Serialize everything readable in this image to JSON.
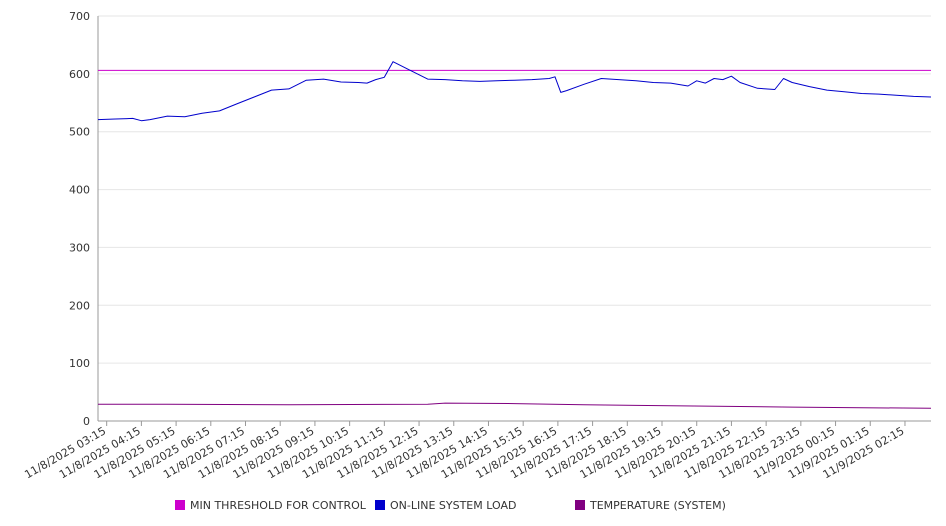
{
  "chart_data": {
    "type": "line",
    "title": "",
    "xlabel": "",
    "ylabel": "",
    "ylim": [
      0,
      700
    ],
    "yticks": [
      0,
      100,
      200,
      300,
      400,
      500,
      600,
      700
    ],
    "grid": true,
    "legend_placement": "bottom",
    "x_tick_labels": [
      "11/8/2025 03:15",
      "11/8/2025 04:15",
      "11/8/2025 05:15",
      "11/8/2025 06:15",
      "11/8/2025 07:15",
      "11/8/2025 08:15",
      "11/8/2025 09:15",
      "11/8/2025 10:15",
      "11/8/2025 11:15",
      "11/8/2025 12:15",
      "11/8/2025 13:15",
      "11/8/2025 14:15",
      "11/8/2025 15:15",
      "11/8/2025 16:15",
      "11/8/2025 17:15",
      "11/8/2025 18:15",
      "11/8/2025 19:15",
      "11/8/2025 20:15",
      "11/8/2025 21:15",
      "11/8/2025 22:15",
      "11/8/2025 23:15",
      "11/9/2025 00:15",
      "11/9/2025 01:15",
      "11/9/2025 02:15"
    ],
    "series": [
      {
        "name": "MIN THRESHOLD FOR CONTROL",
        "color": "#cc00cc",
        "x": [
          "11/8/2025 03:00",
          "11/9/2025 03:00"
        ],
        "values": [
          606,
          606
        ]
      },
      {
        "name": "ON-LINE SYSTEM LOAD",
        "color": "#0000cc",
        "x": [
          "11/8/2025 03:00",
          "11/8/2025 03:30",
          "11/8/2025 04:00",
          "11/8/2025 04:15",
          "11/8/2025 04:30",
          "11/8/2025 05:00",
          "11/8/2025 05:30",
          "11/8/2025 06:00",
          "11/8/2025 06:30",
          "11/8/2025 07:00",
          "11/8/2025 07:30",
          "11/8/2025 08:00",
          "11/8/2025 08:30",
          "11/8/2025 09:00",
          "11/8/2025 09:30",
          "11/8/2025 10:00",
          "11/8/2025 10:30",
          "11/8/2025 10:45",
          "11/8/2025 11:00",
          "11/8/2025 11:15",
          "11/8/2025 11:30",
          "11/8/2025 12:00",
          "11/8/2025 12:30",
          "11/8/2025 13:00",
          "11/8/2025 13:30",
          "11/8/2025 14:00",
          "11/8/2025 14:30",
          "11/8/2025 15:00",
          "11/8/2025 15:30",
          "11/8/2025 16:00",
          "11/8/2025 16:10",
          "11/8/2025 16:20",
          "11/8/2025 16:30",
          "11/8/2025 17:00",
          "11/8/2025 17:30",
          "11/8/2025 18:00",
          "11/8/2025 18:30",
          "11/8/2025 19:00",
          "11/8/2025 19:30",
          "11/8/2025 20:00",
          "11/8/2025 20:15",
          "11/8/2025 20:30",
          "11/8/2025 20:45",
          "11/8/2025 21:00",
          "11/8/2025 21:15",
          "11/8/2025 21:30",
          "11/8/2025 22:00",
          "11/8/2025 22:30",
          "11/8/2025 22:45",
          "11/8/2025 23:00",
          "11/8/2025 23:30",
          "11/9/2025 00:00",
          "11/9/2025 00:30",
          "11/9/2025 01:00",
          "11/9/2025 01:30",
          "11/9/2025 02:00",
          "11/9/2025 02:30",
          "11/9/2025 03:00"
        ],
        "values": [
          521,
          522,
          523,
          519,
          521,
          527,
          526,
          532,
          536,
          548,
          560,
          572,
          574,
          589,
          591,
          586,
          585,
          584,
          590,
          594,
          621,
          606,
          591,
          590,
          588,
          587,
          588,
          589,
          590,
          592,
          595,
          568,
          571,
          582,
          592,
          590,
          588,
          585,
          584,
          579,
          588,
          584,
          592,
          590,
          596,
          585,
          575,
          573,
          592,
          585,
          578,
          572,
          569,
          566,
          565,
          563,
          561,
          560
        ]
      },
      {
        "name": "TEMPERATURE (SYSTEM)",
        "color": "#800080",
        "x": [
          "11/8/2025 03:00",
          "11/8/2025 05:00",
          "11/8/2025 08:30",
          "11/8/2025 12:30",
          "11/8/2025 13:00",
          "11/8/2025 15:00",
          "11/8/2025 17:00",
          "11/8/2025 18:30",
          "11/8/2025 21:30",
          "11/8/2025 23:00",
          "11/9/2025 01:00",
          "11/9/2025 03:00"
        ],
        "values": [
          29,
          29,
          28,
          29,
          31,
          30,
          28,
          27,
          25,
          24,
          23,
          22
        ]
      }
    ]
  }
}
